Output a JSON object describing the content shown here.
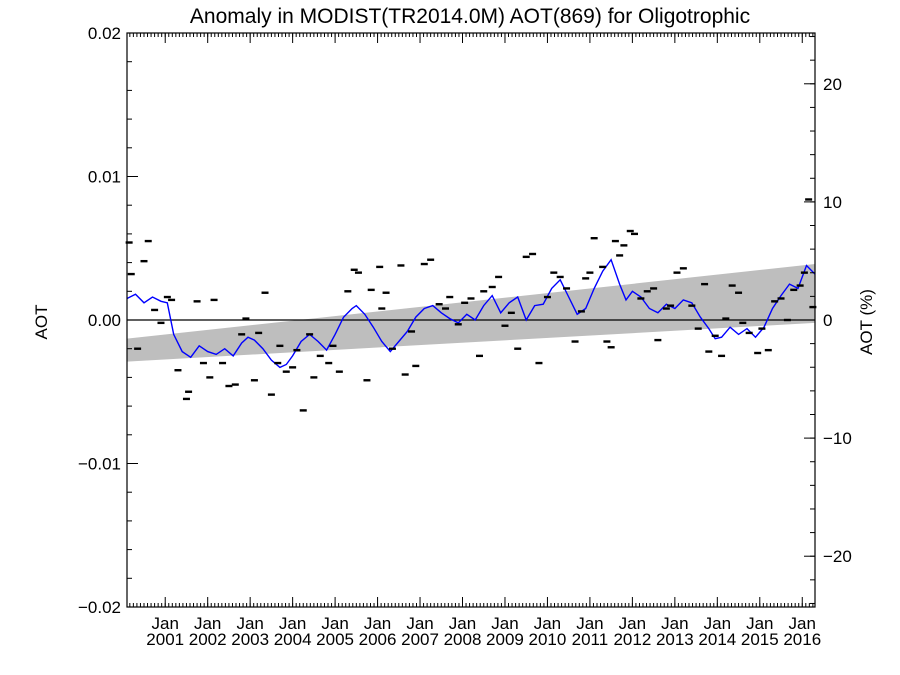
{
  "chart_data": {
    "type": "line",
    "title": "Anomaly in MODIST(TR2014.0M) AOT(869) for Oligotrophic",
    "ylabel_left": "AOT",
    "ylabel_right": "AOT (%)",
    "ylim": [
      -0.02,
      0.02
    ],
    "y2lim": [
      -24.3,
      24.3
    ],
    "xlim": [
      2000.1,
      2016.3
    ],
    "y_ticks": [
      {
        "value": 0.02,
        "label": "0.02"
      },
      {
        "value": 0.01,
        "label": "0.01"
      },
      {
        "value": 0.0,
        "label": "0.00"
      },
      {
        "value": -0.01,
        "label": "−0.01"
      },
      {
        "value": -0.02,
        "label": "−0.02"
      }
    ],
    "y2_ticks": [
      {
        "value": 20,
        "label": "20"
      },
      {
        "value": 10,
        "label": "10"
      },
      {
        "value": 0,
        "label": "0"
      },
      {
        "value": -10,
        "label": "−10"
      },
      {
        "value": -20,
        "label": "−20"
      }
    ],
    "x_ticks": [
      {
        "value": 2001,
        "line1": "Jan",
        "line2": "2001"
      },
      {
        "value": 2002,
        "line1": "Jan",
        "line2": "2002"
      },
      {
        "value": 2003,
        "line1": "Jan",
        "line2": "2003"
      },
      {
        "value": 2004,
        "line1": "Jan",
        "line2": "2004"
      },
      {
        "value": 2005,
        "line1": "Jan",
        "line2": "2005"
      },
      {
        "value": 2006,
        "line1": "Jan",
        "line2": "2006"
      },
      {
        "value": 2007,
        "line1": "Jan",
        "line2": "2007"
      },
      {
        "value": 2008,
        "line1": "Jan",
        "line2": "2008"
      },
      {
        "value": 2009,
        "line1": "Jan",
        "line2": "2009"
      },
      {
        "value": 2010,
        "line1": "Jan",
        "line2": "2010"
      },
      {
        "value": 2011,
        "line1": "Jan",
        "line2": "2011"
      },
      {
        "value": 2012,
        "line1": "Jan",
        "line2": "2012"
      },
      {
        "value": 2013,
        "line1": "Jan",
        "line2": "2013"
      },
      {
        "value": 2014,
        "line1": "Jan",
        "line2": "2014"
      },
      {
        "value": 2015,
        "line1": "Jan",
        "line2": "2015"
      },
      {
        "value": 2016,
        "line1": "Jan",
        "line2": "2016"
      }
    ],
    "zero_line": 0.0,
    "trend_band": {
      "x": [
        2000.1,
        2016.3
      ],
      "lower": [
        -0.0029,
        -0.0002
      ],
      "upper": [
        -0.0013,
        0.0039
      ],
      "color": "#bebebe"
    },
    "series": [
      {
        "style": "line",
        "color": "#0000ff",
        "x": [
          2000.1,
          2000.3,
          2000.5,
          2000.7,
          2000.9,
          2001.05,
          2001.2,
          2001.4,
          2001.6,
          2001.8,
          2002.0,
          2002.2,
          2002.4,
          2002.6,
          2002.8,
          2002.95,
          2003.1,
          2003.3,
          2003.5,
          2003.7,
          2003.85,
          2004.0,
          2004.2,
          2004.4,
          2004.6,
          2004.8,
          2005.0,
          2005.2,
          2005.4,
          2005.5,
          2005.7,
          2005.9,
          2006.1,
          2006.3,
          2006.5,
          2006.7,
          2006.9,
          2007.1,
          2007.3,
          2007.5,
          2007.7,
          2007.9,
          2008.1,
          2008.3,
          2008.5,
          2008.7,
          2008.9,
          2009.1,
          2009.3,
          2009.5,
          2009.7,
          2009.9,
          2010.1,
          2010.3,
          2010.5,
          2010.7,
          2010.9,
          2011.1,
          2011.3,
          2011.5,
          2011.7,
          2011.85,
          2012.0,
          2012.2,
          2012.4,
          2012.6,
          2012.8,
          2013.0,
          2013.2,
          2013.4,
          2013.6,
          2013.8,
          2013.95,
          2014.1,
          2014.3,
          2014.5,
          2014.7,
          2014.9,
          2015.1,
          2015.3,
          2015.5,
          2015.7,
          2015.9,
          2016.1,
          2016.3
        ],
        "y": [
          0.0015,
          0.0018,
          0.0012,
          0.0016,
          0.0013,
          0.0012,
          -0.001,
          -0.0022,
          -0.0026,
          -0.0018,
          -0.0022,
          -0.0024,
          -0.002,
          -0.0025,
          -0.0016,
          -0.0012,
          -0.0014,
          -0.002,
          -0.0028,
          -0.0033,
          -0.0031,
          -0.0025,
          -0.0015,
          -0.001,
          -0.0015,
          -0.0021,
          -0.001,
          0.0002,
          0.0008,
          0.001,
          0.0004,
          -0.0005,
          -0.0015,
          -0.0022,
          -0.0015,
          -0.0008,
          0.0002,
          0.0008,
          0.001,
          0.0005,
          0.0001,
          -0.0002,
          0.0004,
          0.0,
          0.001,
          0.0017,
          0.0005,
          0.0012,
          0.0016,
          0.0,
          0.001,
          0.0011,
          0.0022,
          0.0028,
          0.0016,
          0.0004,
          0.0008,
          0.0022,
          0.0034,
          0.0042,
          0.0025,
          0.0014,
          0.002,
          0.0016,
          0.0008,
          0.0005,
          0.0011,
          0.0008,
          0.0014,
          0.0012,
          0.0002,
          -0.0006,
          -0.0013,
          -0.0012,
          -0.0005,
          -0.001,
          -0.0006,
          -0.0012,
          -0.0005,
          0.0008,
          0.0017,
          0.0025,
          0.0022,
          0.0038,
          0.0032
        ]
      },
      {
        "style": "dash-markers",
        "color": "#000000",
        "x": [
          2000.15,
          2000.2,
          2000.35,
          2000.5,
          2000.6,
          2000.75,
          2000.9,
          2001.05,
          2001.15,
          2001.3,
          2001.5,
          2001.55,
          2001.75,
          2001.9,
          2002.05,
          2002.15,
          2002.35,
          2002.5,
          2002.65,
          2002.8,
          2002.9,
          2003.1,
          2003.2,
          2003.35,
          2003.5,
          2003.65,
          2003.7,
          2003.85,
          2004.0,
          2004.1,
          2004.25,
          2004.4,
          2004.5,
          2004.65,
          2004.85,
          2004.95,
          2005.1,
          2005.3,
          2005.45,
          2005.55,
          2005.75,
          2005.85,
          2006.05,
          2006.1,
          2006.2,
          2006.35,
          2006.55,
          2006.65,
          2006.8,
          2006.9,
          2007.1,
          2007.25,
          2007.45,
          2007.6,
          2007.7,
          2007.9,
          2008.05,
          2008.2,
          2008.4,
          2008.5,
          2008.7,
          2008.85,
          2009.0,
          2009.15,
          2009.3,
          2009.5,
          2009.65,
          2009.8,
          2010.0,
          2010.15,
          2010.3,
          2010.45,
          2010.65,
          2010.8,
          2010.9,
          2011.0,
          2011.1,
          2011.3,
          2011.4,
          2011.5,
          2011.6,
          2011.7,
          2011.8,
          2011.95,
          2012.05,
          2012.2,
          2012.35,
          2012.5,
          2012.6,
          2012.8,
          2012.9,
          2013.05,
          2013.2,
          2013.4,
          2013.55,
          2013.7,
          2013.8,
          2013.95,
          2014.1,
          2014.2,
          2014.35,
          2014.5,
          2014.6,
          2014.75,
          2014.95,
          2015.05,
          2015.2,
          2015.35,
          2015.5,
          2015.65,
          2015.8,
          2015.95,
          2016.05,
          2016.15,
          2016.25
        ],
        "y": [
          0.0054,
          0.0032,
          -0.002,
          0.0041,
          0.0055,
          0.0007,
          -0.0002,
          0.0016,
          0.0014,
          -0.0035,
          -0.0055,
          -0.005,
          0.0013,
          -0.003,
          -0.004,
          0.0014,
          -0.003,
          -0.0046,
          -0.0045,
          -0.001,
          0.0001,
          -0.0042,
          -0.0009,
          0.0019,
          -0.0052,
          -0.003,
          -0.0018,
          -0.0036,
          -0.0033,
          -0.0021,
          -0.0063,
          -0.001,
          -0.004,
          -0.0025,
          -0.003,
          -0.0018,
          -0.0036,
          0.002,
          0.0035,
          0.0033,
          -0.0042,
          0.0021,
          0.0037,
          0.0008,
          0.0019,
          -0.002,
          0.0038,
          -0.0038,
          -0.0008,
          -0.0032,
          0.0039,
          0.0042,
          0.0011,
          0.0008,
          0.0016,
          -0.0003,
          0.0012,
          0.0015,
          -0.0025,
          0.002,
          0.0023,
          0.003,
          -0.0004,
          0.0005,
          -0.002,
          0.0044,
          0.0046,
          -0.003,
          0.0016,
          0.0033,
          0.003,
          0.0022,
          -0.0015,
          0.0006,
          0.0029,
          0.0033,
          0.0057,
          0.0037,
          -0.0015,
          -0.0019,
          0.0055,
          0.0045,
          0.0052,
          0.0062,
          0.006,
          0.0015,
          0.002,
          0.0022,
          -0.0014,
          0.0008,
          0.001,
          0.0033,
          0.0036,
          0.001,
          -0.0006,
          0.0025,
          -0.0022,
          -0.0011,
          -0.0025,
          0.0001,
          0.0024,
          0.0019,
          -0.0002,
          -0.0009,
          -0.0023,
          -0.0006,
          -0.0021,
          0.0013,
          0.0015,
          0.0,
          0.0021,
          0.0024,
          0.0033,
          0.0084,
          0.0009
        ]
      }
    ]
  }
}
